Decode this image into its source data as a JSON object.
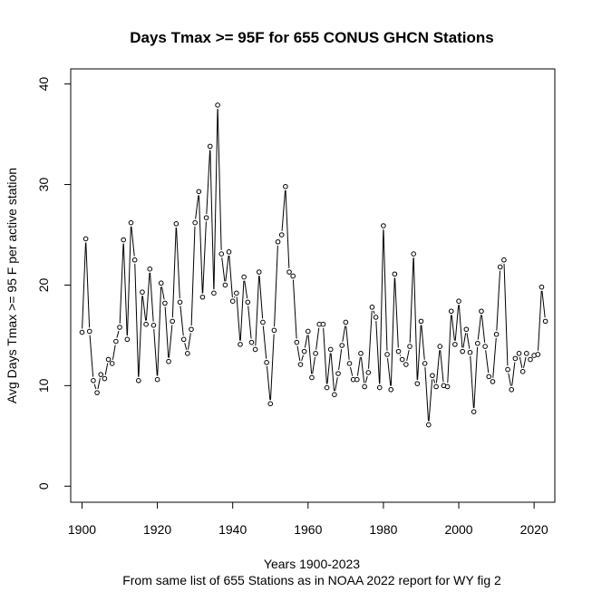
{
  "chart_data": {
    "type": "line",
    "title": "Days Tmax >= 95F for 655 CONUS GHCN Stations",
    "xlabel": "Years 1900-2023",
    "subtitle": "From same list of 655 Stations as in NOAA 2022 report for WY fig 2",
    "ylabel": "Avg Days Tmax >= 95 F per active station",
    "xlim": [
      1897,
      2025.5
    ],
    "ylim": [
      -1.6,
      41.5
    ],
    "xticks": [
      1900,
      1920,
      1940,
      1960,
      1980,
      2000,
      2020
    ],
    "yticks": [
      0,
      10,
      20,
      30,
      40
    ],
    "series": [
      {
        "name": "Avg days Tmax >= 95F",
        "x": [
          1900,
          1901,
          1902,
          1903,
          1904,
          1905,
          1906,
          1907,
          1908,
          1909,
          1910,
          1911,
          1912,
          1913,
          1914,
          1915,
          1916,
          1917,
          1918,
          1919,
          1920,
          1921,
          1922,
          1923,
          1924,
          1925,
          1926,
          1927,
          1928,
          1929,
          1930,
          1931,
          1932,
          1933,
          1934,
          1935,
          1936,
          1937,
          1938,
          1939,
          1940,
          1941,
          1942,
          1943,
          1944,
          1945,
          1946,
          1947,
          1948,
          1949,
          1950,
          1951,
          1952,
          1953,
          1954,
          1955,
          1956,
          1957,
          1958,
          1959,
          1960,
          1961,
          1962,
          1963,
          1964,
          1965,
          1966,
          1967,
          1968,
          1969,
          1970,
          1971,
          1972,
          1973,
          1974,
          1975,
          1976,
          1977,
          1978,
          1979,
          1980,
          1981,
          1982,
          1983,
          1984,
          1985,
          1986,
          1987,
          1988,
          1989,
          1990,
          1991,
          1992,
          1993,
          1994,
          1995,
          1996,
          1997,
          1998,
          1999,
          2000,
          2001,
          2002,
          2003,
          2004,
          2005,
          2006,
          2007,
          2008,
          2009,
          2010,
          2011,
          2012,
          2013,
          2014,
          2015,
          2016,
          2017,
          2018,
          2019,
          2020,
          2021,
          2022,
          2023
        ],
        "y": [
          15.3,
          24.6,
          15.4,
          10.5,
          9.3,
          11.1,
          10.7,
          12.6,
          12.2,
          14.4,
          15.8,
          24.5,
          14.6,
          26.2,
          22.5,
          10.5,
          19.3,
          16.1,
          21.6,
          16.0,
          10.6,
          20.2,
          18.2,
          12.4,
          16.4,
          26.1,
          18.3,
          14.6,
          13.2,
          15.6,
          26.2,
          29.3,
          18.8,
          26.7,
          33.8,
          19.2,
          37.9,
          23.1,
          20.0,
          23.3,
          18.4,
          19.2,
          14.1,
          20.8,
          18.3,
          14.3,
          13.6,
          21.3,
          16.3,
          12.3,
          8.2,
          15.5,
          24.3,
          25.0,
          29.8,
          21.3,
          20.9,
          14.3,
          12.1,
          13.4,
          15.4,
          10.8,
          13.2,
          16.1,
          16.1,
          9.8,
          13.6,
          9.1,
          11.2,
          14.0,
          16.3,
          12.2,
          10.6,
          10.6,
          13.2,
          9.9,
          11.3,
          17.8,
          16.8,
          9.8,
          25.9,
          13.1,
          9.6,
          21.1,
          13.4,
          12.6,
          12.1,
          13.9,
          23.1,
          10.2,
          16.4,
          12.2,
          6.1,
          11.0,
          9.9,
          13.9,
          10.0,
          9.9,
          17.4,
          14.1,
          18.4,
          13.4,
          15.6,
          13.3,
          7.4,
          14.2,
          17.4,
          13.9,
          10.9,
          10.4,
          15.1,
          21.8,
          22.5,
          11.6,
          9.6,
          12.7,
          13.2,
          11.4,
          13.2,
          12.6,
          13.0,
          13.1,
          19.8,
          16.4
        ]
      }
    ]
  }
}
